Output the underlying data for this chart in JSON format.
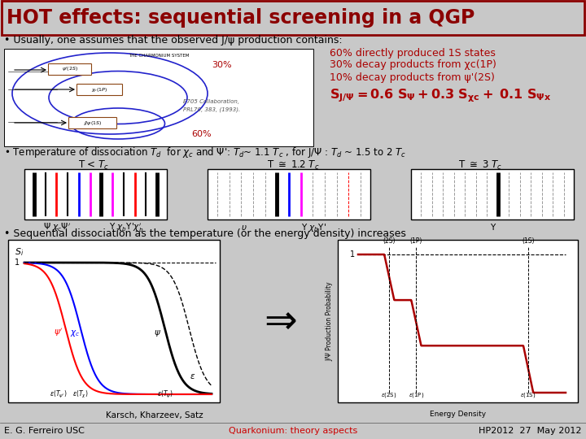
{
  "title": "HOT effects: sequential screening in a QGP",
  "title_color": "#8B0000",
  "bg_color": "#C8C8C8",
  "border_color": "#8B0000",
  "bullet1": "• Usually, one assumes that the observed J/ψ production contains:",
  "pct_60": "60% directly produced 1S states",
  "pct_30": "30% decay products from χc(1P)",
  "pct_10": "10% decay products from ψ'(2S)",
  "bullet2": "• Temperature of dissociation $T_d$  for $\\chi_c$ and $\\Psi$': $T_d$~ 1.1 $T_c$ , for J/$\\Psi$ : $T_d$ ~ 1.5 to 2 $T_c$",
  "bullet3": "• Sequential dissociation as the temperature (or the energy density) increases",
  "footer_left": "E. G. Ferreiro USC",
  "footer_center": "Quarkonium: theory aspects",
  "footer_center_color": "#CC0000",
  "footer_right": "HP2012  27  May 2012",
  "karsch": "Karsch, Kharzeev, Satz",
  "red_color": "#AA0000",
  "dark_red": "#8B0000"
}
